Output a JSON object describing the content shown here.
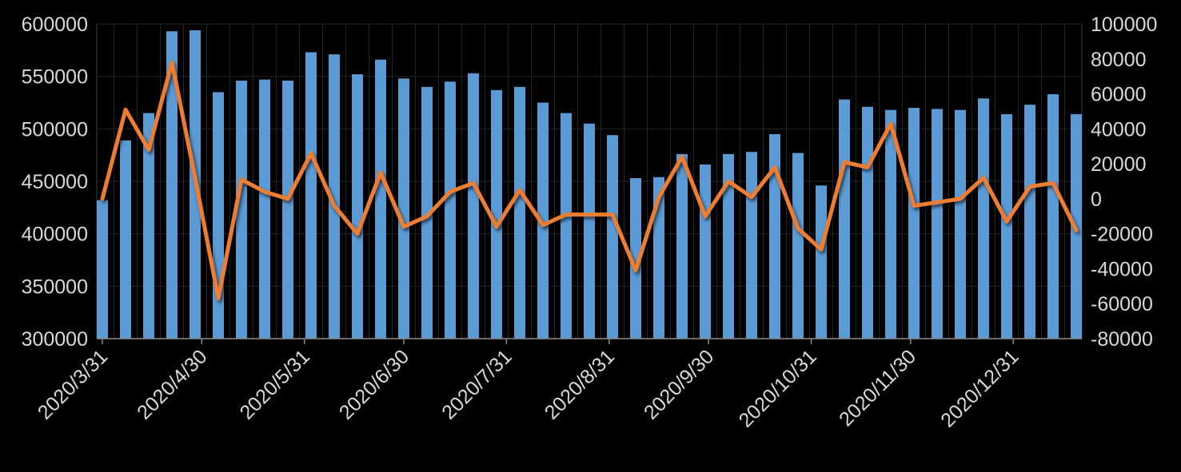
{
  "window": {
    "background": "#000000",
    "text_color": "#D9D9D9"
  },
  "chart_data": {
    "type": "combo-bar-line",
    "title": "",
    "legend": null,
    "background": "#000000",
    "grid": {
      "horizontal": true,
      "vertical": true,
      "color": "#262626",
      "edge_color": "#3f3f3f"
    },
    "axis_line_color": "#8c8c8c",
    "categories": [
      "2020/3/31",
      "2020/4/7",
      "2020/4/14",
      "2020/4/21",
      "2020/4/28",
      "2020/5/5",
      "2020/5/12",
      "2020/5/19",
      "2020/5/26",
      "2020/6/2",
      "2020/6/9",
      "2020/6/16",
      "2020/6/23",
      "2020/6/30",
      "2020/7/7",
      "2020/7/14",
      "2020/7/21",
      "2020/7/28",
      "2020/8/4",
      "2020/8/11",
      "2020/8/18",
      "2020/8/25",
      "2020/9/1",
      "2020/9/8",
      "2020/9/15",
      "2020/9/22",
      "2020/9/29",
      "2020/10/6",
      "2020/10/13",
      "2020/10/20",
      "2020/10/27",
      "2020/11/3",
      "2020/11/10",
      "2020/11/17",
      "2020/11/24",
      "2020/12/1",
      "2020/12/8",
      "2020/12/15",
      "2020/12/22",
      "2020/12/29",
      "2021/1/5",
      "2021/1/12",
      "2021/1/19"
    ],
    "series": [
      {
        "name": "bars",
        "type": "bar",
        "axis": "left",
        "color": "#5B9BD5",
        "values": [
          432000,
          489000,
          515000,
          593000,
          594000,
          535000,
          546000,
          547000,
          546000,
          573000,
          571000,
          552000,
          566000,
          548000,
          540000,
          545000,
          553000,
          537000,
          540000,
          525000,
          515000,
          505000,
          494000,
          453000,
          454000,
          476000,
          466000,
          476000,
          478000,
          495000,
          477000,
          446000,
          528000,
          521000,
          518000,
          520000,
          519000,
          518000,
          529000,
          514000,
          523000,
          533000,
          514000
        ]
      },
      {
        "name": "line",
        "type": "line",
        "axis": "right",
        "color": "#ED7D31",
        "stroke_width": 5,
        "values": [
          0,
          51000,
          28000,
          78000,
          12000,
          -57000,
          11000,
          4000,
          0,
          26000,
          -4000,
          -20000,
          15000,
          -16000,
          -10000,
          4000,
          9000,
          -16000,
          5000,
          -15000,
          -9000,
          -9000,
          -9000,
          -41000,
          1000,
          24000,
          -10000,
          10000,
          1000,
          18000,
          -17000,
          -29000,
          21000,
          18000,
          43000,
          -4000,
          -2000,
          0,
          12000,
          -13000,
          7000,
          9000,
          -18000
        ]
      }
    ],
    "left_axis": {
      "min": 300000,
      "max": 600000,
      "step": 50000,
      "tick_labels": [
        "600000",
        "550000",
        "500000",
        "450000",
        "400000",
        "350000",
        "300000"
      ]
    },
    "right_axis": {
      "min": -80000,
      "max": 100000,
      "step": 20000,
      "tick_labels": [
        "100000",
        "80000",
        "60000",
        "40000",
        "20000",
        "0",
        "-20000",
        "-40000",
        "-60000",
        "-80000"
      ]
    },
    "x_axis": {
      "tick_labels": [
        "2020/3/31",
        "2020/4/30",
        "2020/5/31",
        "2020/6/30",
        "2020/7/31",
        "2020/8/31",
        "2020/9/30",
        "2020/10/31",
        "2020/11/30",
        "2020/12/31"
      ],
      "tick_day_offsets": [
        0,
        30,
        61,
        91,
        122,
        153,
        183,
        214,
        244,
        275
      ],
      "label_rotation_deg": -45
    }
  }
}
